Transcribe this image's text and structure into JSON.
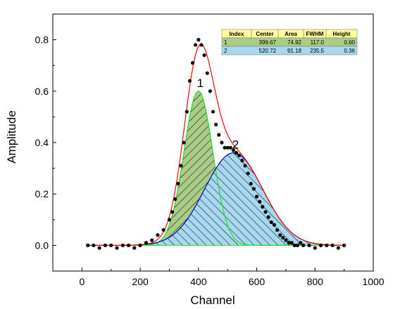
{
  "chart_data": {
    "type": "line",
    "xlabel": "Channel",
    "ylabel": "Amplitude",
    "xlim": [
      -100,
      1000
    ],
    "ylim": [
      -0.1,
      0.9
    ],
    "xticks": [
      "0",
      "200",
      "400",
      "600",
      "800",
      "1000"
    ],
    "yticks": [
      "0.0",
      "0.2",
      "0.4",
      "0.6",
      "0.8"
    ],
    "xtick_values": [
      0,
      200,
      400,
      600,
      800,
      1000
    ],
    "ytick_values": [
      0.0,
      0.2,
      0.4,
      0.6,
      0.8
    ],
    "grid": false,
    "peaks": [
      {
        "label": "1",
        "center": 399.67,
        "area": 74.92,
        "fwhm": 117.0,
        "height": 0.6,
        "fill": "#a9cc86",
        "line": "#22dd22"
      },
      {
        "label": "2",
        "center": 520.72,
        "area": 91.18,
        "fwhm": 235.5,
        "height": 0.36,
        "fill": "#a8d8f0",
        "line": "#0000cc"
      }
    ],
    "data_points": {
      "x": [
        20,
        40,
        60,
        80,
        100,
        120,
        140,
        160,
        180,
        200,
        220,
        240,
        260,
        280,
        300,
        310,
        320,
        330,
        340,
        350,
        360,
        370,
        380,
        390,
        400,
        410,
        420,
        430,
        440,
        450,
        460,
        470,
        480,
        490,
        500,
        510,
        520,
        530,
        540,
        550,
        560,
        570,
        580,
        590,
        600,
        610,
        620,
        630,
        640,
        650,
        660,
        670,
        680,
        690,
        700,
        710,
        720,
        730,
        740,
        750,
        760,
        780,
        800,
        820,
        840,
        860,
        880,
        900
      ],
      "y": [
        0.0,
        0.0,
        -0.01,
        0.0,
        0.0,
        -0.01,
        0.0,
        0.0,
        -0.01,
        0.0,
        0.01,
        0.02,
        0.04,
        0.06,
        0.1,
        0.13,
        0.18,
        0.24,
        0.31,
        0.4,
        0.52,
        0.64,
        0.71,
        0.78,
        0.8,
        0.78,
        0.74,
        0.67,
        0.6,
        0.52,
        0.47,
        0.43,
        0.4,
        0.38,
        0.38,
        0.38,
        0.37,
        0.36,
        0.35,
        0.33,
        0.31,
        0.28,
        0.24,
        0.22,
        0.19,
        0.17,
        0.15,
        0.13,
        0.11,
        0.09,
        0.08,
        0.06,
        0.04,
        0.03,
        0.02,
        0.01,
        0.01,
        0.0,
        0.0,
        0.01,
        0.0,
        0.0,
        -0.01,
        0.0,
        0.0,
        0.0,
        -0.01,
        0.0
      ]
    },
    "table": {
      "headers": [
        "Index",
        "Center",
        "Area",
        "FWHM",
        "Height"
      ],
      "rows": [
        [
          "1",
          "399.67",
          "74.92",
          "117.0",
          "0.60"
        ],
        [
          "2",
          "520.72",
          "91.18",
          "235.5",
          "0.36"
        ]
      ]
    },
    "colors": {
      "cumulative_line": "#ff0000",
      "data_points": "#000000",
      "hatch": "#000000",
      "table_header_bg": "#ffff99",
      "row1_bg": "#a9cc86",
      "row2_bg": "#a8d8f0"
    }
  }
}
